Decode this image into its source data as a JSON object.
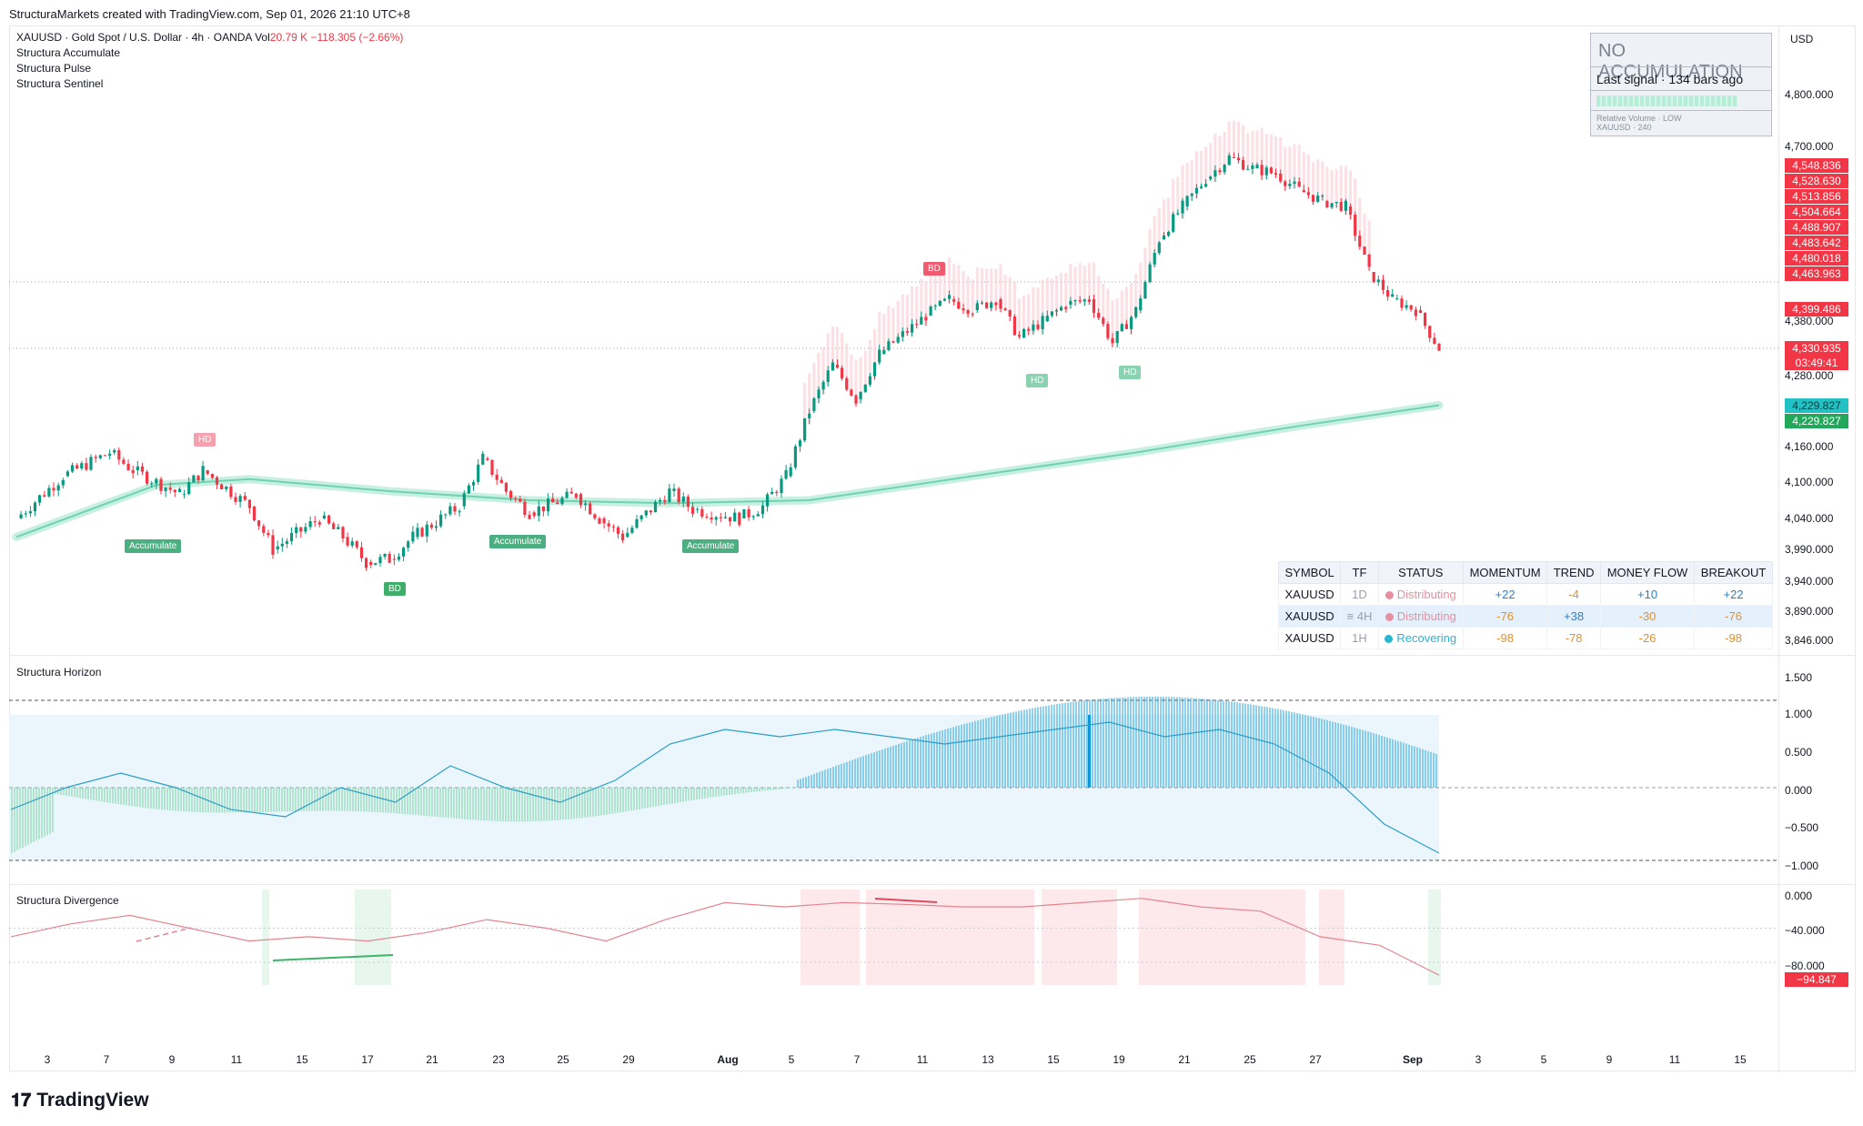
{
  "header": {
    "text": "StructuraMarkets created with TradingView.com, Sep 01, 2026 21:10 UTC+8"
  },
  "legend": {
    "symbol_line": "XAUUSD · Gold Spot / U.S. Dollar · 4h · OANDA",
    "vol_label": "Vol",
    "vol_value": "20.79 K",
    "change": "−118.305 (−2.66%)",
    "indicators": [
      "Structura Accumulate",
      "Structura Pulse",
      "Structura Sentinel"
    ]
  },
  "currency": "USD",
  "no_accumulation": {
    "title": "NO ACCUMULATION",
    "last_signal": "Last signal · 134 bars ago",
    "sub1": "Relative Volume · LOW",
    "sub2": "XAUUSD · 240"
  },
  "price_axis": {
    "ticks": [
      "4,800.000",
      "4,700.000",
      "4,380.000",
      "4,280.000",
      "4,160.000",
      "4,100.000",
      "4,040.000",
      "3,990.000",
      "3,940.000",
      "3,890.000",
      "3,846.000"
    ],
    "boxes_red": [
      "4,548.836",
      "4,528.630",
      "4,513.856",
      "4,504.664",
      "4,488.907",
      "4,483.642",
      "4,480.018",
      "4,463.963"
    ],
    "box_4399": "4,399.486",
    "last_price": "4,330.935",
    "countdown": "03:49:41",
    "ma_teal": "4,229.827",
    "ma_green": "4,229.827"
  },
  "tags": {
    "accumulate": "Accumulate",
    "hd": "HD",
    "bd": "BD"
  },
  "status_table": {
    "headers": [
      "SYMBOL",
      "TF",
      "STATUS",
      "MOMENTUM",
      "TREND",
      "MONEY FLOW",
      "BREAKOUT"
    ],
    "rows": [
      {
        "symbol": "XAUUSD",
        "tf": "1D",
        "status": "Distributing",
        "momentum": "+22",
        "trend": "-4",
        "money_flow": "+10",
        "breakout": "+22"
      },
      {
        "symbol": "XAUUSD",
        "tf": "≡ 4H",
        "status": "Distributing",
        "momentum": "-76",
        "trend": "+38",
        "money_flow": "-30",
        "breakout": "-76"
      },
      {
        "symbol": "XAUUSD",
        "tf": "1H",
        "status": "Recovering",
        "momentum": "-98",
        "trend": "-78",
        "money_flow": "-26",
        "breakout": "-98"
      }
    ]
  },
  "horizon": {
    "title": "Structura Horizon",
    "ticks": [
      "1.500",
      "1.000",
      "0.500",
      "0.000",
      "−0.500",
      "−1.000"
    ]
  },
  "divergence": {
    "title": "Structura Divergence",
    "ticks": [
      "0.000",
      "−40.000",
      "−80.000"
    ],
    "last_value": "−94.847"
  },
  "x_axis": [
    "3",
    "7",
    "9",
    "11",
    "15",
    "17",
    "21",
    "23",
    "25",
    "29",
    "Aug",
    "5",
    "7",
    "11",
    "13",
    "15",
    "19",
    "21",
    "25",
    "27",
    "Sep",
    "3",
    "5",
    "9",
    "11",
    "15"
  ],
  "brand": "TradingView",
  "colors": {
    "up": "#089981",
    "down": "#f23645",
    "ma": "#6fd3b0",
    "horizon": "#2aa6d9",
    "pink": "#f6b7c4"
  },
  "chart_data": [
    {
      "type": "candlestick",
      "title": "XAUUSD · Gold Spot / U.S. Dollar · 4h · OANDA",
      "ylim": [
        3846,
        4850
      ],
      "x_range": [
        "Jul 2",
        "Sep 1"
      ],
      "close_path": [
        {
          "x": "Jul 2",
          "y": 4040
        },
        {
          "x": "Jul 4",
          "y": 4110
        },
        {
          "x": "Jul 6",
          "y": 4150
        },
        {
          "x": "Jul 7",
          "y": 4120
        },
        {
          "x": "Jul 9",
          "y": 4080
        },
        {
          "x": "Jul 10",
          "y": 4120
        },
        {
          "x": "Jul 12",
          "y": 4060
        },
        {
          "x": "Jul 13",
          "y": 3990
        },
        {
          "x": "Jul 15",
          "y": 4040
        },
        {
          "x": "Jul 16",
          "y": 4010
        },
        {
          "x": "Jul 17",
          "y": 3970
        },
        {
          "x": "Jul 18",
          "y": 3975
        },
        {
          "x": "Jul 19",
          "y": 4010
        },
        {
          "x": "Jul 21",
          "y": 4060
        },
        {
          "x": "Jul 22",
          "y": 4140
        },
        {
          "x": "Jul 23",
          "y": 4085
        },
        {
          "x": "Jul 24",
          "y": 4050
        },
        {
          "x": "Jul 26",
          "y": 4080
        },
        {
          "x": "Jul 27",
          "y": 4040
        },
        {
          "x": "Jul 28",
          "y": 4010
        },
        {
          "x": "Jul 30",
          "y": 4085
        },
        {
          "x": "Jul 31",
          "y": 4055
        },
        {
          "x": "Aug 2",
          "y": 4040
        },
        {
          "x": "Aug 3",
          "y": 4060
        },
        {
          "x": "Aug 4",
          "y": 4110
        },
        {
          "x": "Aug 5",
          "y": 4220
        },
        {
          "x": "Aug 6",
          "y": 4300
        },
        {
          "x": "Aug 7",
          "y": 4240
        },
        {
          "x": "Aug 8",
          "y": 4320
        },
        {
          "x": "Aug 10",
          "y": 4390
        },
        {
          "x": "Aug 11",
          "y": 4420
        },
        {
          "x": "Aug 12",
          "y": 4400
        },
        {
          "x": "Aug 13",
          "y": 4420
        },
        {
          "x": "Aug 14",
          "y": 4350
        },
        {
          "x": "Aug 15",
          "y": 4380
        },
        {
          "x": "Aug 16",
          "y": 4410
        },
        {
          "x": "Aug 17",
          "y": 4420
        },
        {
          "x": "Aug 18",
          "y": 4340
        },
        {
          "x": "Aug 19",
          "y": 4400
        },
        {
          "x": "Aug 20",
          "y": 4530
        },
        {
          "x": "Aug 21",
          "y": 4590
        },
        {
          "x": "Aug 22",
          "y": 4640
        },
        {
          "x": "Aug 23",
          "y": 4680
        },
        {
          "x": "Aug 24",
          "y": 4660
        },
        {
          "x": "Aug 25",
          "y": 4650
        },
        {
          "x": "Aug 26",
          "y": 4620
        },
        {
          "x": "Aug 27",
          "y": 4600
        },
        {
          "x": "Aug 28",
          "y": 4590
        },
        {
          "x": "Aug 29",
          "y": 4470
        },
        {
          "x": "Aug 30",
          "y": 4420
        },
        {
          "x": "Aug 31",
          "y": 4400
        },
        {
          "x": "Sep 1",
          "y": 4330
        }
      ],
      "moving_average": [
        {
          "x": "Jul 2",
          "y": 4010
        },
        {
          "x": "Jul 8",
          "y": 4095
        },
        {
          "x": "Jul 12",
          "y": 4105
        },
        {
          "x": "Jul 18",
          "y": 4085
        },
        {
          "x": "Jul 24",
          "y": 4070
        },
        {
          "x": "Jul 30",
          "y": 4065
        },
        {
          "x": "Aug 5",
          "y": 4070
        },
        {
          "x": "Aug 12",
          "y": 4110
        },
        {
          "x": "Aug 19",
          "y": 4150
        },
        {
          "x": "Aug 26",
          "y": 4195
        },
        {
          "x": "Sep 1",
          "y": 4230
        }
      ]
    },
    {
      "type": "line",
      "title": "Structura Horizon",
      "ylim": [
        -1.0,
        1.5
      ],
      "series": [
        {
          "values": [
            -0.3,
            0.0,
            0.2,
            0.0,
            -0.3,
            -0.4,
            0.0,
            -0.2,
            0.3,
            0.0,
            -0.2,
            0.1,
            0.6,
            0.8,
            0.7,
            0.8,
            0.7,
            0.6,
            0.7,
            0.8,
            0.9,
            0.7,
            0.8,
            0.6,
            0.2,
            -0.5,
            -0.9
          ]
        }
      ]
    },
    {
      "type": "line",
      "title": "Structura Divergence",
      "ylim": [
        -100,
        5
      ],
      "series": [
        {
          "values": [
            -50,
            -35,
            -25,
            -40,
            -55,
            -50,
            -55,
            -45,
            -30,
            -40,
            -55,
            -30,
            -10,
            -15,
            -10,
            -12,
            -15,
            -15,
            -10,
            -5,
            -15,
            -20,
            -50,
            -60,
            -95
          ]
        }
      ]
    }
  ]
}
